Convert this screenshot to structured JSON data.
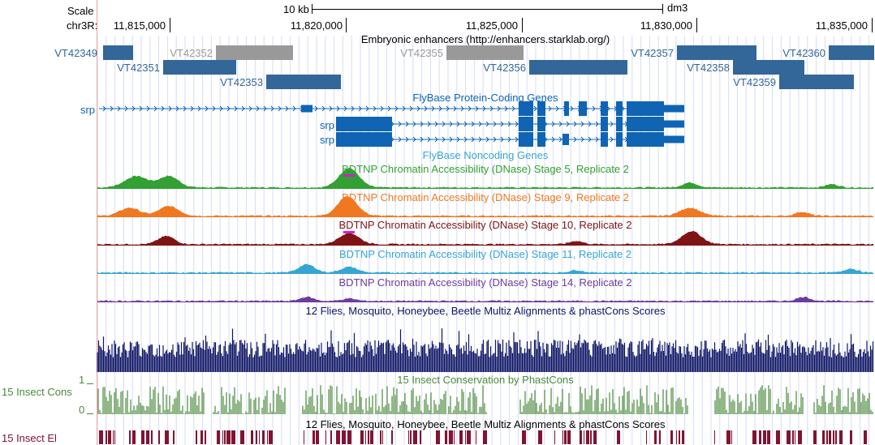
{
  "ruler": {
    "scale_label": "Scale",
    "chrom_label": "chr3R:",
    "scale_bar_label": "10 kb",
    "assembly": "dm3",
    "ticks": [
      "11,815,000",
      "11,820,000",
      "11,825,000",
      "11,830,000",
      "11,835,000"
    ]
  },
  "enhancers": {
    "title": "Embryonic enhancers (http://enhancers.starklab.org/)",
    "items": [
      "VT42349",
      "VT42352",
      "VT42351",
      "VT42353",
      "VT42355",
      "VT42356",
      "VT42357",
      "VT42358",
      "VT42359",
      "VT42360"
    ],
    "active_color": "#336699",
    "inactive_color": "#999999"
  },
  "genes": {
    "title": "FlyBase Protein-Coding Genes",
    "gene_names": [
      "srp",
      "srp",
      "srp"
    ],
    "noncoding_title": "FlyBase Noncoding Genes",
    "color": "#0f64b4"
  },
  "dnase": [
    {
      "title": "BDTNP Chromatin Accessibility (DNase) Stage 5, Replicate 2",
      "color": "#32a032"
    },
    {
      "title": "BDTNP Chromatin Accessibility (DNase) Stage 9, Replicate 2",
      "color": "#f07820"
    },
    {
      "title": "BDTNP Chromatin Accessibility (DNase) Stage 10, Replicate 2",
      "color": "#7f1414"
    },
    {
      "title": "BDTNP Chromatin Accessibility (DNase) Stage 11, Replicate 2",
      "color": "#37a5d2"
    },
    {
      "title": "BDTNP Chromatin Accessibility (DNase) Stage 14, Replicate 2",
      "color": "#6e3c9c"
    }
  ],
  "conservation": {
    "multiz_title": "12 Flies, Mosquito, Honeybee, Beetle Multiz Alignments & phastCons Scores",
    "multiz_color": "#0c1464",
    "phastcons_title": "15 Insect Conservation by PhastCons",
    "phastcons_label": "15 Insect Cons",
    "axis_max": "1",
    "axis_min": "0",
    "phastcons_color": "#4a8a3a",
    "elements_title": "12 Flies, Mosquito, Honeybee, Beetle Multiz Alignments & phastCons Scores",
    "elements_label": "15 Insect El",
    "elements_color": "#801432"
  }
}
